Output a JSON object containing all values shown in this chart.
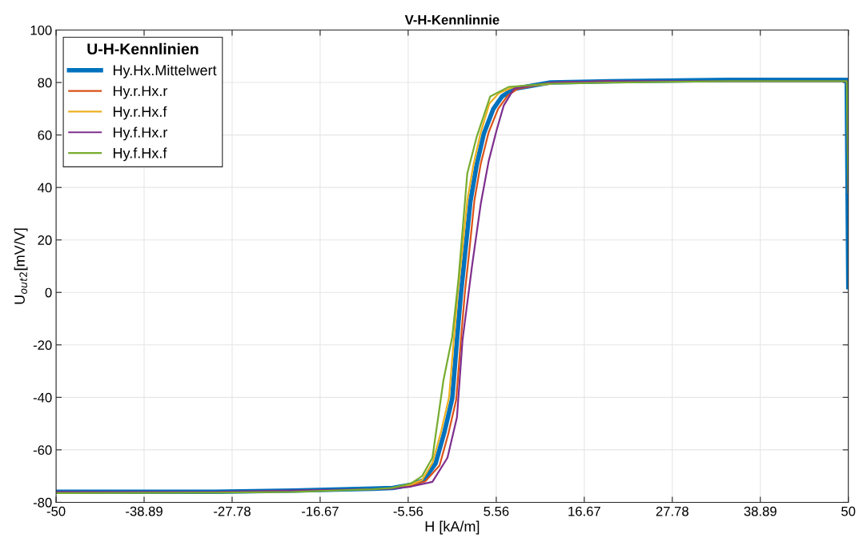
{
  "chart_data": {
    "type": "line",
    "title": "V-H-Kennlinnie",
    "xlabel": "H [kA/m]",
    "ylabel": "U$_{out2}$[mV/V]",
    "legend_title": "U-H-Kennlinien",
    "xlim": [
      -50,
      50
    ],
    "xticks": [
      -50,
      -38.89,
      -27.78,
      -16.67,
      -5.56,
      5.56,
      16.67,
      27.78,
      38.89,
      50
    ],
    "ylim": [
      -80,
      100
    ],
    "yticks": [
      -80,
      -60,
      -40,
      -20,
      0,
      20,
      40,
      60,
      80,
      100
    ],
    "grid": true,
    "legend": "top left",
    "line_style": "solid",
    "marker": "none",
    "series": [
      {
        "name": "Hy.Hx.Mittelwert",
        "color": "#0072bd",
        "x": [
          -50,
          -30,
          -20,
          -10,
          -7.5,
          -5.2,
          -3.6,
          -2.1,
          -1.0,
          0,
          0.6,
          1.1,
          1.7,
          2.3,
          3.1,
          4.0,
          5.2,
          6.3,
          7.8,
          12.4,
          20,
          35,
          49.8,
          50
        ],
        "values": [
          -76,
          -76,
          -75.5,
          -74.8,
          -74.5,
          -73.3,
          -71.6,
          -65.2,
          -53.4,
          -40.5,
          -18.2,
          -0.5,
          17.2,
          34.7,
          48.8,
          60.6,
          70.0,
          74.7,
          77.6,
          80.0,
          80.5,
          81,
          81,
          2
        ]
      },
      {
        "name": "Hy.r.Hx.r",
        "color": "#d95319",
        "x": [
          -7.5,
          -5.2,
          -3.4,
          -1.6,
          -0.5,
          0.5,
          1.1,
          1.6,
          2.2,
          2.8,
          3.6,
          4.6,
          5.8,
          7.0,
          8.2,
          12.4,
          20
        ],
        "values": [
          -74.5,
          -73.5,
          -72,
          -66,
          -54,
          -41,
          -18,
          0,
          17,
          35,
          49,
          61,
          70,
          75,
          77.5,
          80,
          80.5
        ]
      },
      {
        "name": "Hy.r.Hx.f",
        "color": "#edb120",
        "x": [
          -7.5,
          -5.2,
          -3.8,
          -2.5,
          -1.4,
          -0.4,
          0.2,
          0.7,
          1.3,
          1.9,
          2.7,
          3.6,
          4.7,
          5.9,
          7.5,
          12.4
        ],
        "values": [
          -74.5,
          -73.2,
          -71.5,
          -65,
          -53,
          -40,
          -18,
          0,
          17,
          35,
          49,
          61,
          72,
          76,
          78,
          79.5
        ]
      },
      {
        "name": "Hy.f.Hx.r",
        "color": "#7e2f8e",
        "x": [
          -50,
          -30,
          -20,
          -10,
          -7.5,
          -5.2,
          -2.5,
          -0.6,
          0.6,
          1.3,
          2.5,
          3.6,
          4.6,
          5.6,
          6.5,
          7.8,
          12.4,
          20,
          35,
          49.8,
          50
        ],
        "values": [
          -76,
          -76,
          -75.5,
          -75,
          -74.8,
          -74,
          -72.2,
          -63,
          -47.6,
          -18.2,
          10,
          33.7,
          50,
          61.8,
          71.2,
          77.7,
          80,
          80.5,
          80.5,
          80.5,
          38
        ]
      },
      {
        "name": "Hy.f.Hx.f",
        "color": "#77ac30",
        "x": [
          -50,
          -30,
          -20,
          -10,
          -7.5,
          -5.2,
          -3.8,
          -2.5,
          -1.1,
          0,
          0.8,
          1.9,
          3.1,
          4.8,
          7.1,
          12,
          20,
          35,
          49.8,
          50
        ],
        "values": [
          -76.5,
          -76.3,
          -76,
          -75,
          -74.5,
          -72.8,
          -70,
          -63,
          -33.4,
          -17,
          5.3,
          45.3,
          59.4,
          74.7,
          78.3,
          79.5,
          80,
          80.5,
          80.5,
          38
        ]
      }
    ]
  }
}
